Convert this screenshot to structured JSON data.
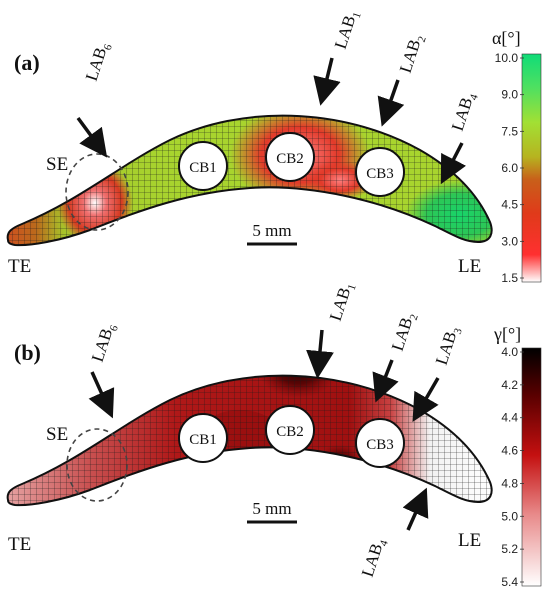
{
  "panels": [
    {
      "id": "a",
      "panel_label": "(a)",
      "edges": {
        "left_top": "SE",
        "left_bottom": "TE",
        "right": "LE"
      },
      "cooling_bores": [
        "CB1",
        "CB2",
        "CB3"
      ],
      "arrows": [
        {
          "base": "LAB",
          "sub": "6"
        },
        {
          "base": "LAB",
          "sub": "1"
        },
        {
          "base": "LAB",
          "sub": "2"
        },
        {
          "base": "LAB",
          "sub": "4"
        }
      ],
      "scale_bar": "5 mm",
      "colorbar": {
        "title": "α[°]",
        "ticks": [
          "10.0",
          "9.0",
          "7.5",
          "6.0",
          "4.5",
          "3.0",
          "1.5"
        ],
        "low_color": "#ff1a1a",
        "high_color": "#10dc78"
      }
    },
    {
      "id": "b",
      "panel_label": "(b)",
      "edges": {
        "left_top": "SE",
        "left_bottom": "TE",
        "right": "LE"
      },
      "cooling_bores": [
        "CB1",
        "CB2",
        "CB3"
      ],
      "arrows": [
        {
          "base": "LAB",
          "sub": "6"
        },
        {
          "base": "LAB",
          "sub": "1"
        },
        {
          "base": "LAB",
          "sub": "2"
        },
        {
          "base": "LAB",
          "sub": "3"
        },
        {
          "base": "LAB",
          "sub": "4"
        }
      ],
      "scale_bar": "5 mm",
      "colorbar": {
        "title": "γ[°]",
        "ticks": [
          "4.0",
          "4.2",
          "4.4",
          "4.6",
          "4.8",
          "5.0",
          "5.2",
          "5.4"
        ],
        "low_color": "#000000",
        "high_color": "#ffffff"
      }
    }
  ]
}
